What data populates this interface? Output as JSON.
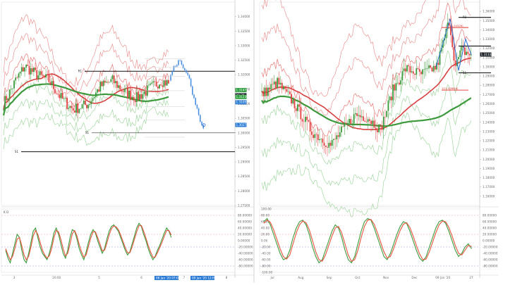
{
  "chart_data": [
    {
      "type": "candlestick",
      "panel": "left",
      "ylim": [
        1.275,
        1.345
      ],
      "y_ticks": [
        "1.34000",
        "1.33500",
        "1.33000",
        "1.32500",
        "1.32000",
        "1.31500",
        "1.31000",
        "1.30500",
        "1.30000",
        "1.29500",
        "1.29000",
        "1.28500",
        "1.28000",
        "1.27500"
      ],
      "x_ticks": [
        "3",
        "20:00",
        "5",
        "6",
        "7",
        "8"
      ],
      "price_tags": [
        {
          "value": 1.31471,
          "label": "1.31471",
          "color": "#2e9e3e"
        },
        {
          "value": 1.31294,
          "label": "28:38",
          "color": "#1e2328"
        },
        {
          "value": 1.31237,
          "label": "1.31237",
          "color": "#2e9e3e"
        },
        {
          "value": 1.31053,
          "label": "1.31053",
          "color": "#2a7bd6"
        },
        {
          "value": 1.30274,
          "label": "1.30274",
          "color": "#2a7bd6"
        }
      ],
      "time_tags": [
        {
          "label": "08 Jan '20  07:00",
          "color": "#2a7bd6"
        },
        {
          "label": "09 Jan '20  12:00",
          "color": "#2a7bd6"
        }
      ],
      "levels": [
        {
          "value": 1.3212,
          "label": "R1",
          "color": "#111111"
        },
        {
          "value": 1.3,
          "label": "S1",
          "color": "#555555"
        },
        {
          "value": 1.2935,
          "label": "S1",
          "color": "#111111"
        }
      ],
      "indicator": {
        "name": "%K, %D",
        "label": "K D",
        "ylim": [
          -100,
          100
        ],
        "y_ticks": [
          "80.00000",
          "60.00000",
          "40.00000",
          "20.00000",
          "0.00000",
          "-20.00000",
          "-40.00000",
          "-60.00000",
          "-80.00000"
        ],
        "series": [
          {
            "name": "%K",
            "color": "#3b9b3b",
            "values": [
              -30,
              -55,
              -70,
              -40,
              -10,
              20,
              10,
              -30,
              -60,
              -70,
              -40,
              -5,
              30,
              40,
              10,
              -20,
              -40,
              -50,
              -60,
              -40,
              -10,
              25,
              40,
              20,
              -10,
              -40,
              -55,
              -30,
              10,
              35,
              30,
              5,
              -25,
              -45,
              -60,
              -35,
              -5,
              20,
              35,
              25,
              0,
              -20,
              -40,
              -25,
              5,
              30,
              45,
              50,
              40,
              30,
              10,
              -10,
              -30,
              -45,
              -35,
              -10,
              15,
              40,
              55,
              45,
              20,
              0,
              -25,
              -45,
              -60,
              -50,
              -30,
              -15,
              5,
              25,
              40,
              30,
              10
            ]
          },
          {
            "name": "%D",
            "color": "#e6533c",
            "values": [
              -25,
              -45,
              -60,
              -50,
              -25,
              5,
              10,
              -15,
              -45,
              -60,
              -50,
              -20,
              15,
              32,
              20,
              -5,
              -30,
              -45,
              -55,
              -48,
              -25,
              10,
              32,
              28,
              5,
              -25,
              -48,
              -40,
              -10,
              22,
              32,
              15,
              -12,
              -35,
              -52,
              -45,
              -18,
              8,
              28,
              28,
              10,
              -10,
              -32,
              -30,
              -8,
              18,
              38,
              46,
              44,
              35,
              18,
              -2,
              -22,
              -38,
              -38,
              -20,
              5,
              28,
              48,
              48,
              30,
              8,
              -15,
              -35,
              -52,
              -52,
              -38,
              -22,
              -5,
              15,
              32,
              32,
              18
            ]
          }
        ],
        "levels": [
          80,
          20,
          -20,
          -80
        ]
      }
    },
    {
      "type": "candlestick",
      "panel": "right",
      "ylim": [
        1.15,
        1.37
      ],
      "y_ticks": [
        "1.36000",
        "1.35000",
        "1.34000",
        "1.33000",
        "1.32000",
        "1.31000",
        "1.30000",
        "1.29000",
        "1.28000",
        "1.27000",
        "1.26000",
        "1.25000",
        "1.24000",
        "1.23000",
        "1.22000",
        "1.21000",
        "1.20000",
        "1.19000",
        "1.18000",
        "1.17000",
        "1.16000"
      ],
      "x_ticks": [
        "Jul",
        "Aug",
        "Sep",
        "Oct",
        "Nov",
        "Dec",
        "09 Jan '20",
        "27"
      ],
      "price_tags": [
        {
          "value": 1.31334,
          "label": "1.31334",
          "color": "#1e2328"
        }
      ],
      "levels": [
        {
          "value": 1.3535,
          "label": "R1",
          "color": "#111111"
        },
        {
          "value": 1.3225,
          "label": "",
          "color": "#111111"
        },
        {
          "value": 1.2935,
          "label": "S1",
          "color": "#111111"
        }
      ],
      "fib_labels": [
        {
          "value": 1.3425,
          "label": "(1.34326)"
        },
        {
          "value": 1.2748,
          "label": "121.2(8846)"
        }
      ],
      "indicator": {
        "name": "%K, %D",
        "label": "",
        "ylim": [
          -100,
          100
        ],
        "y_ticks": [
          "80.00000",
          "60.00000",
          "40.00000",
          "20.00000",
          "0.00000",
          "-20.00000",
          "-40.00000",
          "-60.00000",
          "-80.00000"
        ],
        "left_ticks": [
          "100.00",
          "80.00",
          "60.00",
          "40.00",
          "20.00",
          "0.00",
          "-20.00",
          "-40.00",
          "-60.00",
          "-80.00",
          "-100.00"
        ],
        "series": [
          {
            "name": "%K",
            "color": "#3b9b3b",
            "values": [
              60,
              70,
              50,
              20,
              -10,
              -40,
              -60,
              -55,
              -30,
              10,
              40,
              60,
              65,
              50,
              20,
              -20,
              -50,
              -70,
              -60,
              -30,
              0,
              30,
              50,
              40,
              10,
              -30,
              -60,
              -70,
              -50,
              -10,
              30,
              60,
              70,
              65,
              40,
              10,
              -20,
              -50,
              -60,
              -40,
              -10,
              20,
              45,
              60,
              55,
              30,
              0,
              -30,
              -55,
              -65,
              -50,
              -20,
              10,
              40,
              60,
              65,
              55,
              30,
              0,
              -30,
              -50,
              -40,
              -20,
              -10,
              -25
            ]
          },
          {
            "name": "%D",
            "color": "#e6533c",
            "values": [
              55,
              65,
              58,
              35,
              5,
              -25,
              -50,
              -58,
              -45,
              -10,
              25,
              50,
              62,
              57,
              35,
              0,
              -35,
              -60,
              -65,
              -45,
              -15,
              15,
              40,
              45,
              25,
              -10,
              -45,
              -65,
              -60,
              -30,
              10,
              45,
              65,
              67,
              52,
              25,
              -5,
              -35,
              -55,
              -50,
              -25,
              5,
              32,
              52,
              57,
              42,
              15,
              -15,
              -42,
              -60,
              -58,
              -35,
              -5,
              25,
              50,
              62,
              60,
              42,
              15,
              -15,
              -40,
              -45,
              -30,
              -15,
              -18
            ]
          }
        ],
        "levels": [
          80,
          20,
          -20,
          -80
        ]
      }
    }
  ]
}
